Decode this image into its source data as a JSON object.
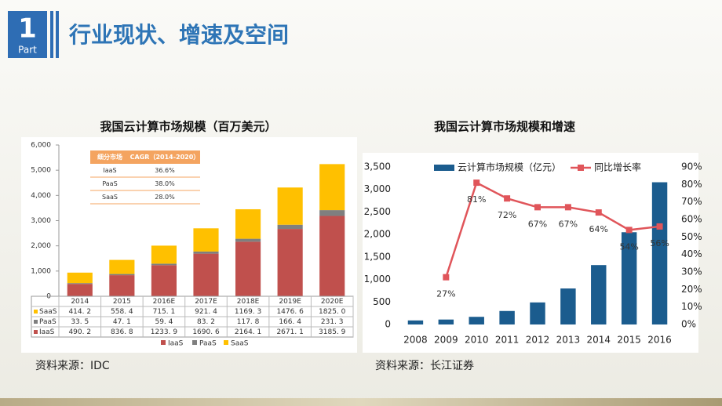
{
  "header": {
    "number": "1",
    "part": "Part",
    "title": "行业现状、增速及空间"
  },
  "chart_data": [
    {
      "type": "bar",
      "stacked": true,
      "title": "我国云计算市场规模（百万美元）",
      "categories": [
        "2014",
        "2015",
        "2016E",
        "2017E",
        "2018E",
        "2019E",
        "2020E"
      ],
      "series": [
        {
          "name": "IaaS",
          "color": "#c0504d",
          "values": [
            490.2,
            836.8,
            1233.9,
            1690.6,
            2164.1,
            2671.1,
            3185.9
          ],
          "value_labels": [
            "490. 2",
            "836. 8",
            "1233. 9",
            "1690. 6",
            "2164. 1",
            "2671. 1",
            "3185. 9"
          ]
        },
        {
          "name": "PaaS",
          "color": "#7f7f7f",
          "values": [
            33.5,
            47.1,
            59.4,
            83.2,
            117.8,
            166.4,
            231.3
          ],
          "value_labels": [
            "33. 5",
            "47. 1",
            "59. 4",
            "83. 2",
            "117. 8",
            "166. 4",
            "231. 3"
          ]
        },
        {
          "name": "SaaS",
          "color": "#ffc000",
          "values": [
            414.2,
            558.4,
            715.1,
            921.4,
            1169.3,
            1476.6,
            1825.0
          ],
          "value_labels": [
            "414. 2",
            "558. 4",
            "715. 1",
            "921. 4",
            "1169. 3",
            "1476. 6",
            "1825. 0"
          ]
        }
      ],
      "ylim": [
        0,
        6000
      ],
      "yticks": [
        0,
        {
          "value": 1000,
          "label": "1,000"
        },
        {
          "value": 2000,
          "label": "2,000"
        },
        {
          "value": 3000,
          "label": "3,000"
        },
        {
          "value": 4000,
          "label": "4,000"
        },
        {
          "value": 5000,
          "label": "5,000"
        },
        {
          "value": 6000,
          "label": "6,000"
        }
      ],
      "grid": false,
      "legend": "bottom",
      "inset_table": {
        "header": [
          "细分市场",
          "CAGR（2014-2020）"
        ],
        "rows": [
          [
            "IaaS",
            "36.6%"
          ],
          [
            "PaaS",
            "38.0%"
          ],
          [
            "SaaS",
            "28.0%"
          ]
        ]
      },
      "source": "资料来源：IDC"
    },
    {
      "type": "combo",
      "title": "我国云计算市场规模和增速",
      "categories": [
        "2008",
        "2009",
        "2010",
        "2011",
        "2012",
        "2013",
        "2014",
        "2015",
        "2016"
      ],
      "series": [
        {
          "name": "云计算市场规模（亿元）",
          "kind": "bar",
          "color": "#1b5c8e",
          "values": [
            90,
            110,
            170,
            300,
            490,
            800,
            1320,
            2050,
            3160
          ]
        },
        {
          "name": "同比增长率",
          "kind": "line",
          "axis": "y2",
          "color": "#e0555a",
          "values": [
            null,
            27,
            81,
            72,
            67,
            67,
            64,
            54,
            56
          ],
          "value_labels": [
            null,
            "27%",
            "81%",
            "72%",
            "67%",
            "67%",
            "64%",
            "54%",
            "56%"
          ]
        }
      ],
      "ylim": [
        0,
        3500
      ],
      "yticks": [
        0,
        500,
        {
          "value": 1000,
          "label": "1,000"
        },
        {
          "value": 1500,
          "label": "1,500"
        },
        {
          "value": 2000,
          "label": "2,000"
        },
        {
          "value": 2500,
          "label": "2,500"
        },
        {
          "value": 3000,
          "label": "3,000"
        },
        {
          "value": 3500,
          "label": "3,500"
        }
      ],
      "y2lim": [
        0,
        90
      ],
      "y2ticks": [
        {
          "value": 0,
          "label": "0%"
        },
        {
          "value": 10,
          "label": "10%"
        },
        {
          "value": 20,
          "label": "20%"
        },
        {
          "value": 30,
          "label": "30%"
        },
        {
          "value": 40,
          "label": "40%"
        },
        {
          "value": 50,
          "label": "50%"
        },
        {
          "value": 60,
          "label": "60%"
        },
        {
          "value": 70,
          "label": "70%"
        },
        {
          "value": 80,
          "label": "80%"
        },
        {
          "value": 90,
          "label": "90%"
        }
      ],
      "grid": false,
      "legend": "top",
      "source": "资料来源：长江证券"
    }
  ]
}
